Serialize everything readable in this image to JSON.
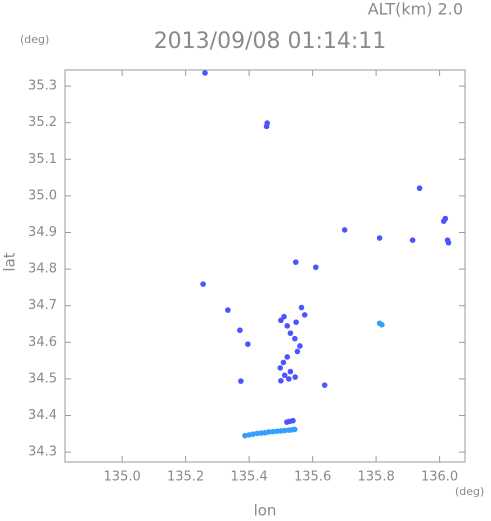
{
  "chart_data": {
    "type": "scatter",
    "title": "2013/09/08 01:14:11",
    "annotation": "ALT(km) 2.0",
    "xlabel": "lon",
    "ylabel": "lat",
    "x_unit": "(deg)",
    "y_unit": "(deg)",
    "xlim": [
      134.82,
      136.08
    ],
    "ylim": [
      34.273,
      35.344
    ],
    "xticks": [
      {
        "value": 135,
        "label": "135.0"
      },
      135.2,
      135.4,
      135.6,
      135.8,
      {
        "value": 136,
        "label": "136.0"
      }
    ],
    "yticks": [
      34.3,
      34.4,
      34.5,
      34.6,
      34.7,
      34.8,
      34.9,
      {
        "value": 35,
        "label": "35.0"
      },
      35.1,
      35.2,
      35.3
    ],
    "series": [
      {
        "color": "#4a55ff",
        "x": [
          135.261,
          135.457,
          135.455,
          135.701,
          135.811,
          135.915,
          136.013,
          136.018,
          136.025,
          136.028,
          135.937,
          135.547,
          135.61,
          135.255,
          135.333,
          135.371,
          135.396,
          135.374,
          135.638,
          135.519,
          135.528,
          135.538,
          135.51,
          135.5,
          135.52,
          135.565,
          135.575,
          135.548,
          135.53,
          135.544,
          135.56,
          135.552,
          135.52,
          135.508,
          135.498,
          135.512,
          135.53,
          135.545,
          135.525,
          135.5
        ],
        "y": [
          35.336,
          35.199,
          35.19,
          34.907,
          34.885,
          34.879,
          34.931,
          34.938,
          34.879,
          34.872,
          35.021,
          34.819,
          34.805,
          34.759,
          34.688,
          34.633,
          34.595,
          34.494,
          34.483,
          34.382,
          34.384,
          34.386,
          34.67,
          34.66,
          34.645,
          34.695,
          34.675,
          34.655,
          34.625,
          34.61,
          34.59,
          34.575,
          34.56,
          34.545,
          34.53,
          34.51,
          34.52,
          34.505,
          34.5,
          34.495
        ]
      },
      {
        "color": "#33a0ff",
        "x": [
          135.387,
          135.4,
          135.412,
          135.425,
          135.438,
          135.45,
          135.462,
          135.475,
          135.488,
          135.5,
          135.512,
          135.525,
          135.535,
          135.544,
          135.811,
          135.818
        ],
        "y": [
          34.345,
          34.347,
          34.349,
          34.351,
          34.352,
          34.353,
          34.355,
          34.356,
          34.357,
          34.358,
          34.359,
          34.36,
          34.361,
          34.362,
          34.652,
          34.648
        ]
      }
    ]
  }
}
